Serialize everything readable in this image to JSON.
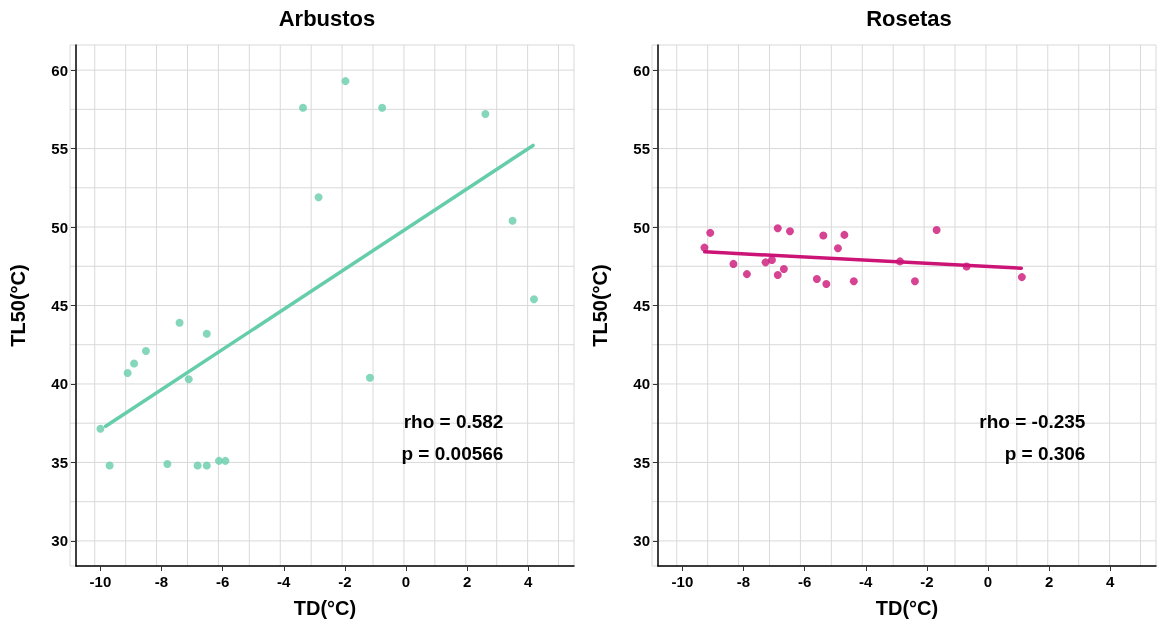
{
  "chart_data": [
    {
      "type": "scatter",
      "title": "Arbustos",
      "xlabel": "TD(°C)",
      "ylabel": "TL50(°C)",
      "xlim": [
        -10.8,
        5.5
      ],
      "ylim": [
        28.4,
        61.6
      ],
      "xticks": [
        -10,
        -8,
        -6,
        -4,
        -2,
        0,
        2,
        4
      ],
      "yticks": [
        30,
        35,
        40,
        45,
        50,
        55,
        60
      ],
      "grid": true,
      "marker": "circle",
      "annotations": [
        "rho = 0.582",
        "p = 0.00566"
      ],
      "series": [
        {
          "color": "#66cdaa",
          "x": [
            -10,
            -9.7,
            -9.11,
            -8.9,
            -8.51,
            -7.81,
            -7.41,
            -7.11,
            -6.52,
            -6.82,
            -6.52,
            -6.12,
            -5.91,
            -3.37,
            -2.86,
            -1.98,
            -0.78,
            -1.18,
            2.6,
            3.49,
            4.19
          ],
          "values": [
            37.15,
            34.8,
            40.7,
            41.3,
            42.1,
            34.9,
            43.9,
            40.3,
            43.2,
            34.8,
            34.8,
            35.1,
            35.1,
            57.6,
            51.9,
            59.3,
            57.6,
            40.4,
            57.2,
            50.4,
            45.4
          ]
        },
        {
          "type": "line",
          "marker": "none",
          "color": "#66cdaa",
          "x": [
            -9.83,
            4.16
          ],
          "values": [
            37.3,
            55.2
          ]
        }
      ]
    },
    {
      "type": "scatter",
      "title": "Rosetas",
      "xlabel": "TD(°C)",
      "ylabel": "TL50(°C)",
      "xlim": [
        -10.8,
        5.5
      ],
      "ylim": [
        28.4,
        61.6
      ],
      "xticks": [
        -10,
        -8,
        -6,
        -4,
        -2,
        0,
        2,
        4
      ],
      "yticks": [
        30,
        35,
        40,
        45,
        50,
        55,
        60
      ],
      "grid": true,
      "marker": "circle",
      "annotations": [
        "rho = -0.235",
        "p = 0.306"
      ],
      "series": [
        {
          "color": "#cc1477",
          "x": [
            -9.28,
            -9.09,
            -8.33,
            -7.89,
            -7.28,
            -7.07,
            -6.88,
            -6.88,
            -6.68,
            -6.48,
            -5.6,
            -5.39,
            -5.29,
            -4.91,
            -4.7,
            -4.39,
            -2.88,
            -2.39,
            -1.68,
            -0.7,
            1.11
          ],
          "values": [
            48.69,
            49.63,
            47.65,
            47.0,
            47.75,
            47.9,
            49.92,
            46.94,
            47.33,
            49.73,
            46.69,
            49.46,
            46.37,
            48.65,
            49.5,
            46.54,
            47.81,
            46.54,
            49.81,
            47.48,
            46.81
          ]
        },
        {
          "type": "line",
          "marker": "none",
          "color": "#cc1477",
          "x": [
            -9.27,
            1.09
          ],
          "values": [
            48.42,
            47.38
          ]
        }
      ]
    }
  ]
}
